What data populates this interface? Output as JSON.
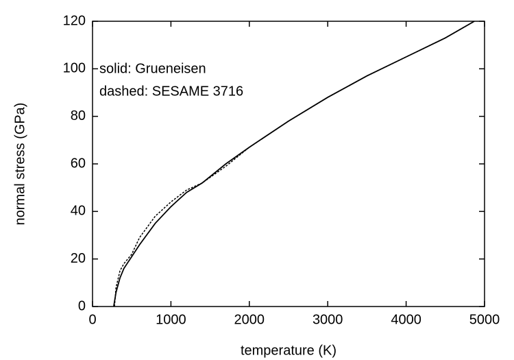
{
  "chart_data": {
    "type": "line",
    "xlabel": "temperature (K)",
    "ylabel": "normal stress (GPa)",
    "annotations": [
      "solid: Grueneisen",
      "dashed: SESAME 3716"
    ],
    "series": [
      {
        "style": "solid",
        "color": "#000000",
        "x": [
          270,
          300,
          350,
          400,
          500,
          600,
          800,
          1000,
          1200,
          1400,
          1700,
          2000,
          2500,
          3000,
          3500,
          4000,
          4500,
          4870
        ],
        "values": [
          0,
          6,
          12,
          16,
          21,
          26,
          35,
          42,
          48,
          52,
          60,
          67,
          78,
          88,
          97,
          105,
          113,
          120
        ]
      },
      {
        "style": "dashed",
        "color": "#000000",
        "x": [
          280,
          300,
          350,
          400,
          500,
          600,
          800,
          1000,
          1200,
          1400,
          1700,
          2000,
          2500,
          3000,
          3500,
          4000,
          4500,
          4870
        ],
        "values": [
          0,
          8,
          15,
          18,
          22,
          29,
          38,
          44,
          49,
          52,
          59,
          67,
          78,
          88,
          97,
          105,
          113,
          120
        ]
      }
    ],
    "xlim": [
      0,
      5000
    ],
    "xticks": [
      0,
      1000,
      2000,
      3000,
      4000,
      5000
    ],
    "ylim": [
      0,
      120
    ],
    "yticks": [
      0,
      20,
      40,
      60,
      80,
      100,
      120
    ]
  }
}
